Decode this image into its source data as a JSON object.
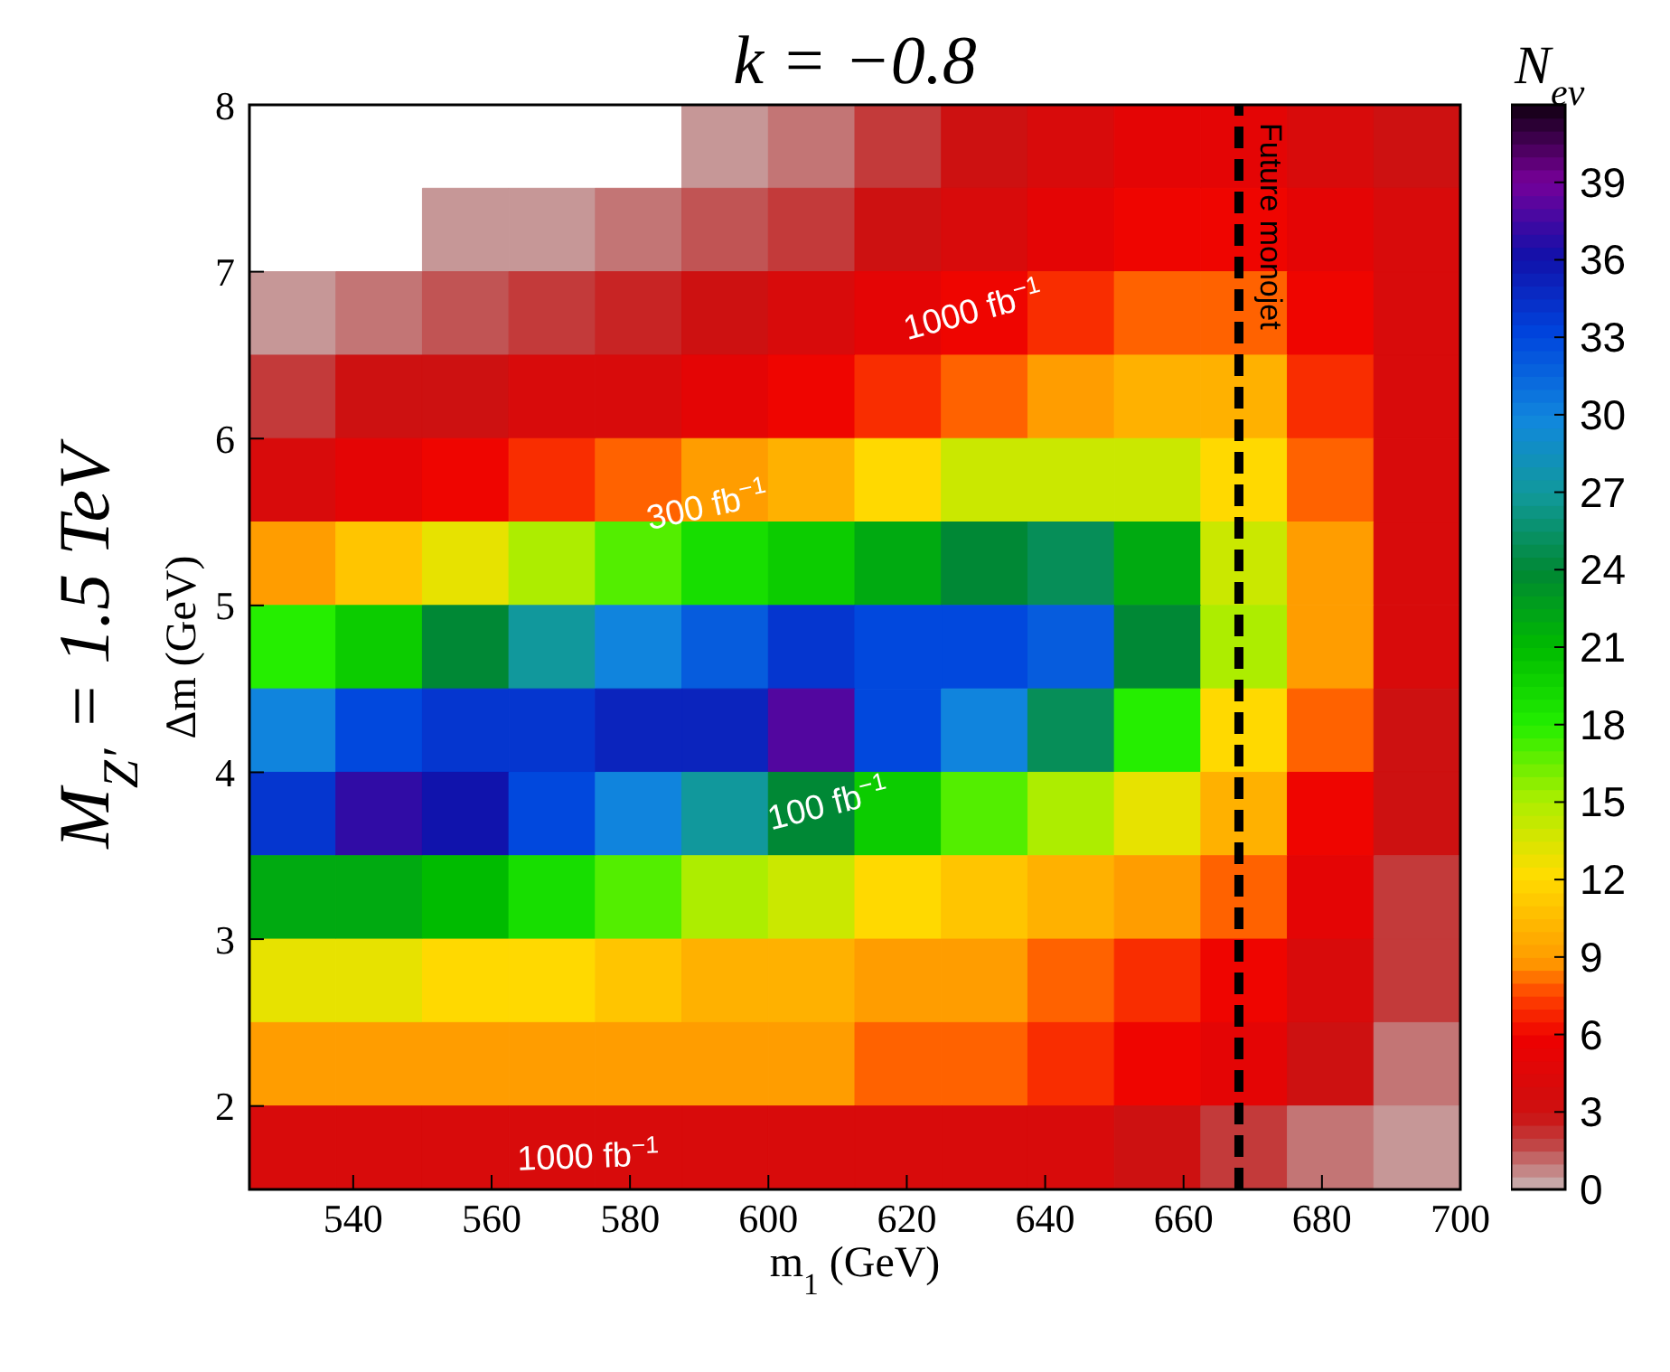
{
  "chart_data": {
    "type": "heatmap",
    "title": "k = −0.8",
    "xlabel": "m$_{1}$ (GeV)",
    "ylabel": "Δm (GeV)",
    "clabel": "N$_{ev}$",
    "cells": [
      [
        null,
        null,
        null,
        null,
        null,
        0.5,
        1,
        2,
        3,
        4,
        5,
        5,
        4,
        3
      ],
      [
        null,
        null,
        0.5,
        0.5,
        1,
        1.5,
        2,
        3,
        4,
        5,
        6,
        6,
        5,
        4
      ],
      [
        0.5,
        1,
        1.5,
        2,
        2.5,
        3,
        4,
        5,
        6,
        7,
        8,
        8,
        6,
        4
      ],
      [
        2,
        3,
        3,
        4,
        4,
        5,
        6,
        7,
        8,
        9,
        10,
        10,
        7,
        4
      ],
      [
        4,
        5,
        6,
        7,
        8,
        9,
        10,
        12,
        14,
        14,
        14,
        12,
        8,
        4
      ],
      [
        9,
        11,
        13,
        15,
        17,
        19,
        20,
        22,
        24,
        25,
        22,
        14,
        9,
        4
      ],
      [
        18,
        20,
        24,
        27,
        30,
        32,
        34,
        33,
        33,
        32,
        24,
        15,
        9,
        4
      ],
      [
        30,
        33,
        34,
        34,
        35,
        35,
        38,
        33,
        30,
        25,
        18,
        12,
        8,
        3
      ],
      [
        34,
        37,
        36,
        33,
        30,
        27,
        24,
        20,
        17,
        15,
        13,
        10,
        6,
        3
      ],
      [
        22,
        22,
        21,
        19,
        17,
        15,
        14,
        12,
        11,
        10,
        9,
        8,
        5,
        2
      ],
      [
        13,
        13,
        12,
        12,
        11,
        10,
        10,
        9,
        9,
        8,
        7,
        6,
        4,
        2
      ],
      [
        9,
        9,
        9,
        9,
        9,
        9,
        9,
        8,
        8,
        7,
        6,
        5,
        3,
        1
      ],
      [
        4,
        4,
        4,
        4,
        4,
        4,
        4,
        4,
        4,
        4,
        3,
        2,
        1,
        0.5
      ]
    ],
    "xlim": [
      525,
      700
    ],
    "xticks": [
      540,
      560,
      580,
      600,
      620,
      640,
      660,
      680,
      700
    ],
    "ylim": [
      1.5,
      8
    ],
    "yticks": [
      2,
      3,
      4,
      5,
      6,
      7,
      8
    ],
    "clim": [
      0,
      42
    ],
    "cticks": [
      0,
      3,
      6,
      9,
      12,
      15,
      18,
      21,
      24,
      27,
      30,
      33,
      36,
      39
    ],
    "ref_lines": [
      {
        "axis": "x",
        "value": 668,
        "label": "Future monojet",
        "color": "#000000",
        "line_style": "dashed"
      }
    ],
    "annotations": [
      "M$_{Z′}$ = 1.5 TeV",
      "1000 fb$^{−1}$",
      "300 fb$^{−1}$",
      "100 fb$^{−1}$",
      "1000 fb$^{−1}$"
    ]
  }
}
